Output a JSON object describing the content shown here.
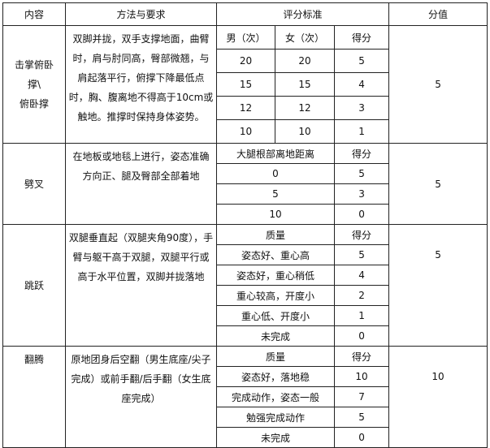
{
  "header": [
    "内容",
    "方法与要求",
    "评分标准",
    "分值"
  ],
  "sections": [
    {
      "name": "击掌俯卧撑\\俯卧撑",
      "name_lines": [
        "击掌俯卧",
        "撑\\",
        "俯卧撑"
      ],
      "method": "双脚并拢，双手支撑地面，曲臂时，肩与肘同高，臀部微翘，与肩起落平行，俯撑下降最低点时，胸、腹离地不得高于10cm或触地。推撑时保持身体姿势。",
      "score": "5",
      "criteria_header": [
        "男（次）",
        "女（次）",
        "得分"
      ],
      "rows": [
        [
          "20",
          "20",
          "5"
        ],
        [
          "15",
          "15",
          "4"
        ],
        [
          "12",
          "12",
          "3"
        ],
        [
          "10",
          "10",
          "1"
        ]
      ]
    },
    {
      "name": "劈叉",
      "method": "在地板或地毯上进行，姿态准确方向正、腿及臀部全部着地",
      "score": "5",
      "criteria_header": [
        "大腿根部离地距离",
        "得分"
      ],
      "rows": [
        [
          "0",
          "5"
        ],
        [
          "5",
          "3"
        ],
        [
          "10",
          "0"
        ]
      ]
    },
    {
      "name": "跳跃",
      "method": "双腿垂直起（双腿夹角90度），手臂与躯干高于双腿，双腿平行或高于水平位置，双脚并拢落地",
      "score": "5",
      "criteria_header": [
        "质量",
        "得分"
      ],
      "rows": [
        [
          "姿态好、重心高",
          "5"
        ],
        [
          "姿态好，重心稍低",
          "4"
        ],
        [
          "重心较高，开度小",
          "2"
        ],
        [
          "重心低、开度小",
          "1"
        ],
        [
          "未完成",
          "0"
        ]
      ]
    },
    {
      "name": "翻腾",
      "method": "原地团身后空翻（男生底座/尖子完成）或前手翻/后手翻（女生底座完成）",
      "score": "10",
      "criteria_header": [
        "质量",
        "得分"
      ],
      "rows": [
        [
          "姿态好，落地稳",
          "10"
        ],
        [
          "完成动作，姿态一般",
          "7"
        ],
        [
          "勉强完成动作",
          "5"
        ],
        [
          "未完成",
          "0"
        ]
      ]
    }
  ]
}
